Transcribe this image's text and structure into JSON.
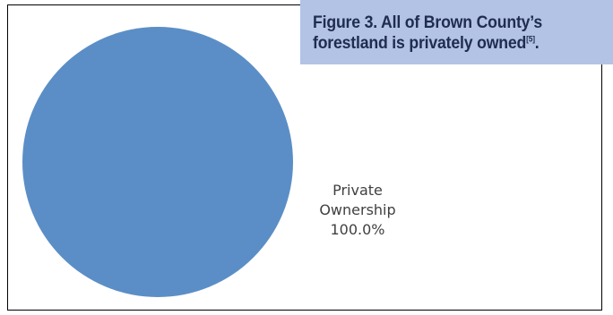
{
  "caption": {
    "line1": "Figure 3. All of Brown County’s",
    "line2": "forestland is privately owned",
    "superscript": "[5]",
    "suffix": "."
  },
  "chart_data": {
    "type": "pie",
    "categories": [
      "Private Ownership"
    ],
    "values": [
      100.0
    ],
    "labels": [
      {
        "category_lines": [
          "Private",
          "Ownership"
        ],
        "percent": "100.0%"
      }
    ],
    "colors": [
      "#5b8ec6"
    ],
    "legend": "none"
  }
}
